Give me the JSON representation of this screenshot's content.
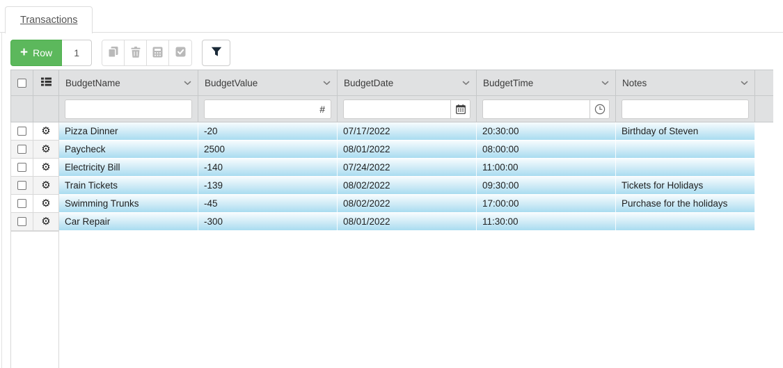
{
  "tab": {
    "label": "Transactions"
  },
  "toolbar": {
    "add_row": {
      "plus": "+",
      "label": "Row"
    },
    "row_count": "1",
    "action_buttons": [
      {
        "icon": "copy-icon"
      },
      {
        "icon": "trash-icon"
      },
      {
        "icon": "calculator-icon"
      },
      {
        "icon": "checkbox-checked-icon"
      }
    ],
    "filter_button": {
      "icon": "filter-funnel-icon"
    }
  },
  "grid": {
    "header_icons": {
      "select_all": "checkbox-icon",
      "row_menu": "list-icon",
      "sort_menu": "chevron-down-icon"
    },
    "columns": [
      {
        "label": "BudgetName",
        "filter": "text"
      },
      {
        "label": "BudgetValue",
        "filter": "number",
        "suffix": "#"
      },
      {
        "label": "BudgetDate",
        "filter": "date"
      },
      {
        "label": "BudgetTime",
        "filter": "time"
      },
      {
        "label": "Notes",
        "filter": "text"
      }
    ],
    "rows": [
      {
        "BudgetName": "Pizza Dinner",
        "BudgetValue": "-20",
        "BudgetDate": "07/17/2022",
        "BudgetTime": "20:30:00",
        "Notes": "Birthday of Steven"
      },
      {
        "BudgetName": "Paycheck",
        "BudgetValue": "2500",
        "BudgetDate": "08/01/2022",
        "BudgetTime": "08:00:00",
        "Notes": ""
      },
      {
        "BudgetName": "Electricity Bill",
        "BudgetValue": "-140",
        "BudgetDate": "07/24/2022",
        "BudgetTime": "11:00:00",
        "Notes": ""
      },
      {
        "BudgetName": "Train Tickets",
        "BudgetValue": "-139",
        "BudgetDate": "08/02/2022",
        "BudgetTime": "09:30:00",
        "Notes": "Tickets for Holidays"
      },
      {
        "BudgetName": "Swimming Trunks",
        "BudgetValue": "-45",
        "BudgetDate": "08/02/2022",
        "BudgetTime": "17:00:00",
        "Notes": "Purchase for the holidays"
      },
      {
        "BudgetName": "Car Repair",
        "BudgetValue": "-300",
        "BudgetDate": "08/01/2022",
        "BudgetTime": "11:30:00",
        "Notes": ""
      }
    ]
  },
  "colors": {
    "accent_green": "#5cb85c",
    "accent_green_border": "#4cae4c",
    "header_bg": "#e0e1e2",
    "grid_border": "#c6c8c9",
    "row_gradient_top": "#f6fcfe",
    "row_gradient_bottom": "#a9dcf0",
    "disabled_icon": "#b9b9b9",
    "filter_icon": "#1b2a38"
  }
}
